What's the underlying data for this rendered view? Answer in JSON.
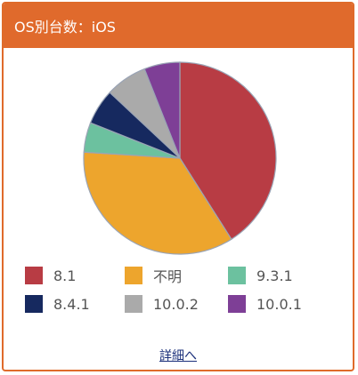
{
  "header": {
    "title": "OS別台数：iOS"
  },
  "chart_data": {
    "type": "pie",
    "title": "OS別台数：iOS",
    "slices": [
      {
        "label": "8.1",
        "value": 41,
        "color": "#b83c44"
      },
      {
        "label": "不明",
        "value": 35,
        "color": "#eda52d"
      },
      {
        "label": "9.3.1",
        "value": 5,
        "color": "#6cc19f"
      },
      {
        "label": "8.4.1",
        "value": 6,
        "color": "#16295f"
      },
      {
        "label": "10.0.2",
        "value": 7,
        "color": "#aaaaaa"
      },
      {
        "label": "10.0.1",
        "value": 6,
        "color": "#7e3f96"
      }
    ],
    "legend_position": "bottom",
    "start": "top, clockwise"
  },
  "footer": {
    "link_label": "詳細へ"
  }
}
